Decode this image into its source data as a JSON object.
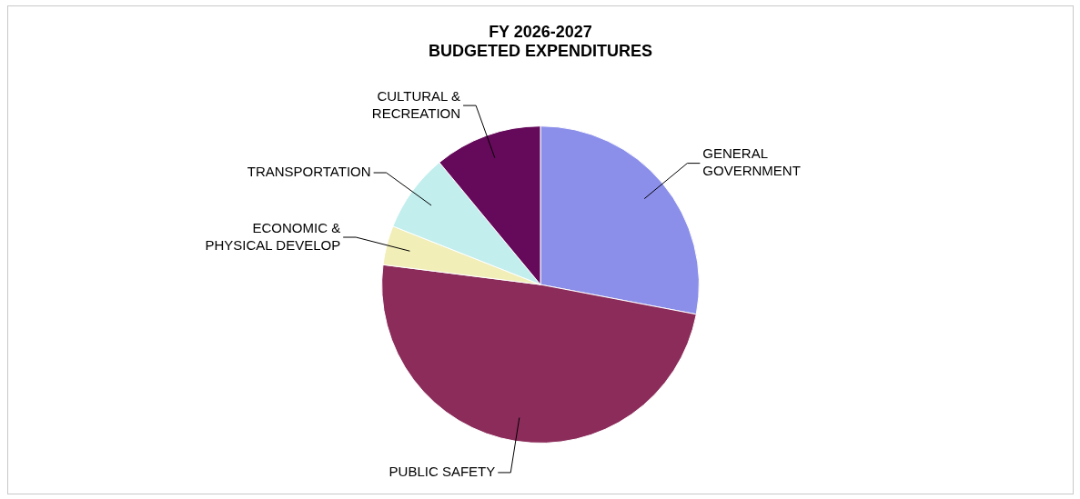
{
  "chart_data": {
    "type": "pie",
    "title": "FY 2026-2027\nBUDGETED EXPENDITURES",
    "categories": [
      "GENERAL GOVERNMENT",
      "PUBLIC SAFETY",
      "ECONOMIC & PHYSICAL DEVELOP",
      "TRANSPORTATION",
      "CULTURAL & RECREATION"
    ],
    "values": [
      28,
      49,
      4,
      8,
      11
    ],
    "colors": [
      "#8b8fea",
      "#8b2c5a",
      "#f1eeb8",
      "#c2eeee",
      "#650a5a"
    ],
    "legend": false
  }
}
